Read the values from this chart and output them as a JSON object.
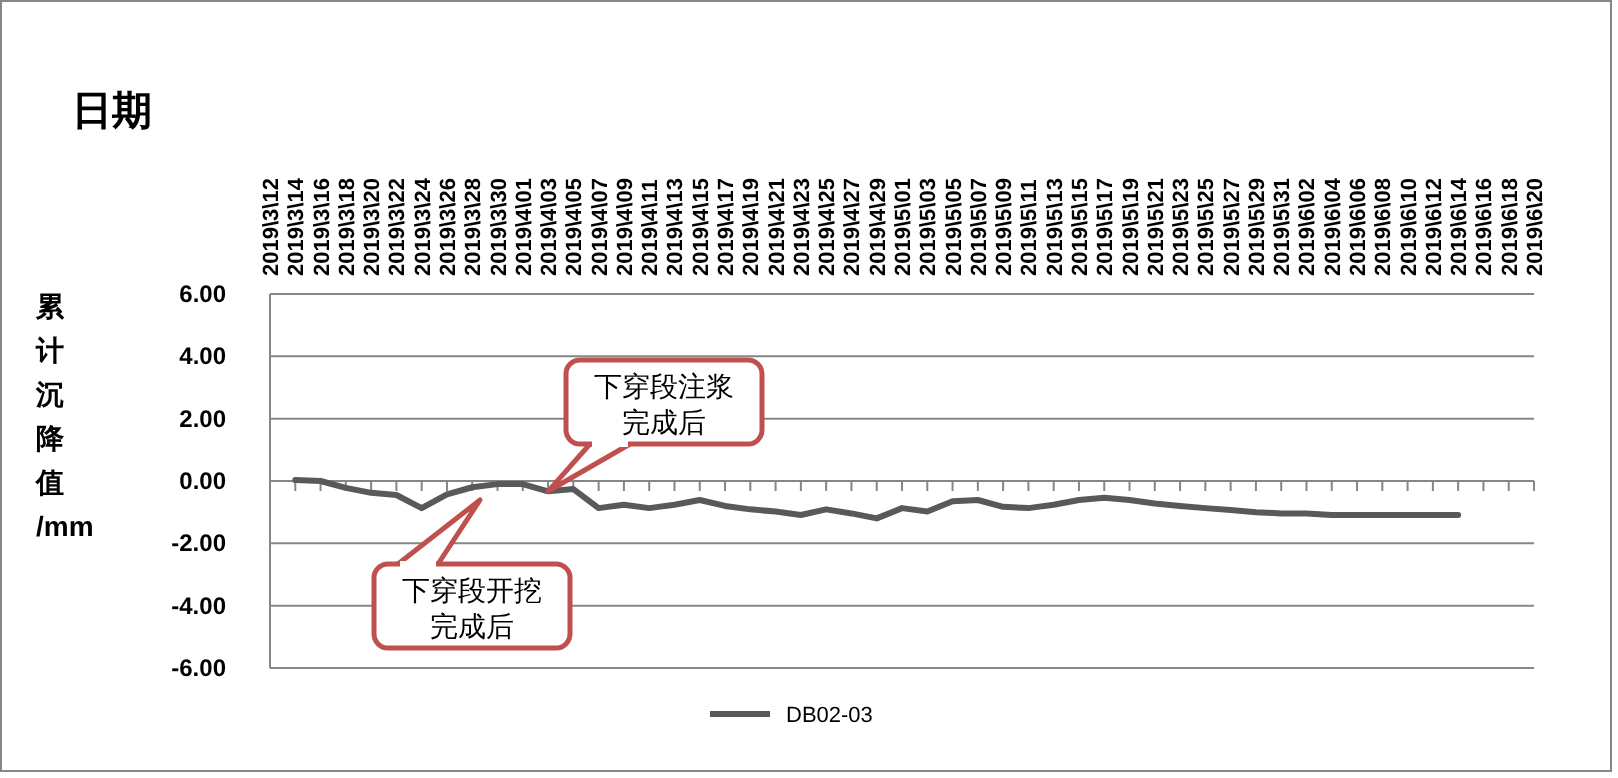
{
  "chart_data": {
    "type": "line",
    "xlabel": "日期",
    "ylabel": "累计沉降值/mm",
    "categories": [
      "2019\\3\\12",
      "2019\\3\\14",
      "2019\\3\\16",
      "2019\\3\\18",
      "2019\\3\\20",
      "2019\\3\\22",
      "2019\\3\\24",
      "2019\\3\\26",
      "2019\\3\\28",
      "2019\\3\\30",
      "2019\\4\\01",
      "2019\\4\\03",
      "2019\\4\\05",
      "2019\\4\\07",
      "2019\\4\\09",
      "2019\\4\\11",
      "2019\\4\\13",
      "2019\\4\\15",
      "2019\\4\\17",
      "2019\\4\\19",
      "2019\\4\\21",
      "2019\\4\\23",
      "2019\\4\\25",
      "2019\\4\\27",
      "2019\\4\\29",
      "2019\\5\\01",
      "2019\\5\\03",
      "2019\\5\\05",
      "2019\\5\\07",
      "2019\\5\\09",
      "2019\\5\\11",
      "2019\\5\\13",
      "2019\\5\\15",
      "2019\\5\\17",
      "2019\\5\\19",
      "2019\\5\\21",
      "2019\\5\\23",
      "2019\\5\\25",
      "2019\\5\\27",
      "2019\\5\\29",
      "2019\\5\\31",
      "2019\\6\\02",
      "2019\\6\\04",
      "2019\\6\\06",
      "2019\\6\\08",
      "2019\\6\\10",
      "2019\\6\\12",
      "2019\\6\\14",
      "2019\\6\\16",
      "2019\\6\\18",
      "2019\\6\\20"
    ],
    "series": [
      {
        "name": "DB02-03",
        "color": "#595959",
        "values": [
          null,
          0.03,
          0.0,
          -0.22,
          -0.38,
          -0.45,
          -0.87,
          -0.43,
          -0.2,
          -0.1,
          -0.1,
          -0.33,
          -0.26,
          -0.87,
          -0.76,
          -0.87,
          -0.76,
          -0.61,
          -0.8,
          -0.91,
          -0.98,
          -1.09,
          -0.91,
          -1.04,
          -1.2,
          -0.87,
          -0.98,
          -0.65,
          -0.61,
          -0.83,
          -0.87,
          -0.76,
          -0.61,
          -0.54,
          -0.61,
          -0.72,
          -0.8,
          -0.87,
          -0.93,
          -1.0,
          -1.04,
          -1.04,
          -1.09,
          -1.09,
          -1.09,
          -1.09,
          -1.09,
          -1.09,
          null,
          null,
          null
        ]
      }
    ],
    "ylim": [
      -6,
      6
    ],
    "yticks": [
      {
        "value": 6,
        "label": "6.00"
      },
      {
        "value": 4,
        "label": "4.00"
      },
      {
        "value": 2,
        "label": "2.00"
      },
      {
        "value": 0,
        "label": "0.00"
      },
      {
        "value": -2,
        "label": "-2.00"
      },
      {
        "value": -4,
        "label": "-4.00"
      },
      {
        "value": -6,
        "label": "-6.00"
      }
    ],
    "grid": "y",
    "legend": "bottom",
    "marker": "none",
    "line_style": "solid",
    "annotations": [
      {
        "text": "下穿段注浆完成后",
        "x": "2019\\4\\03",
        "y": -0.33
      },
      "下穿段开挖完成后"
    ]
  }
}
